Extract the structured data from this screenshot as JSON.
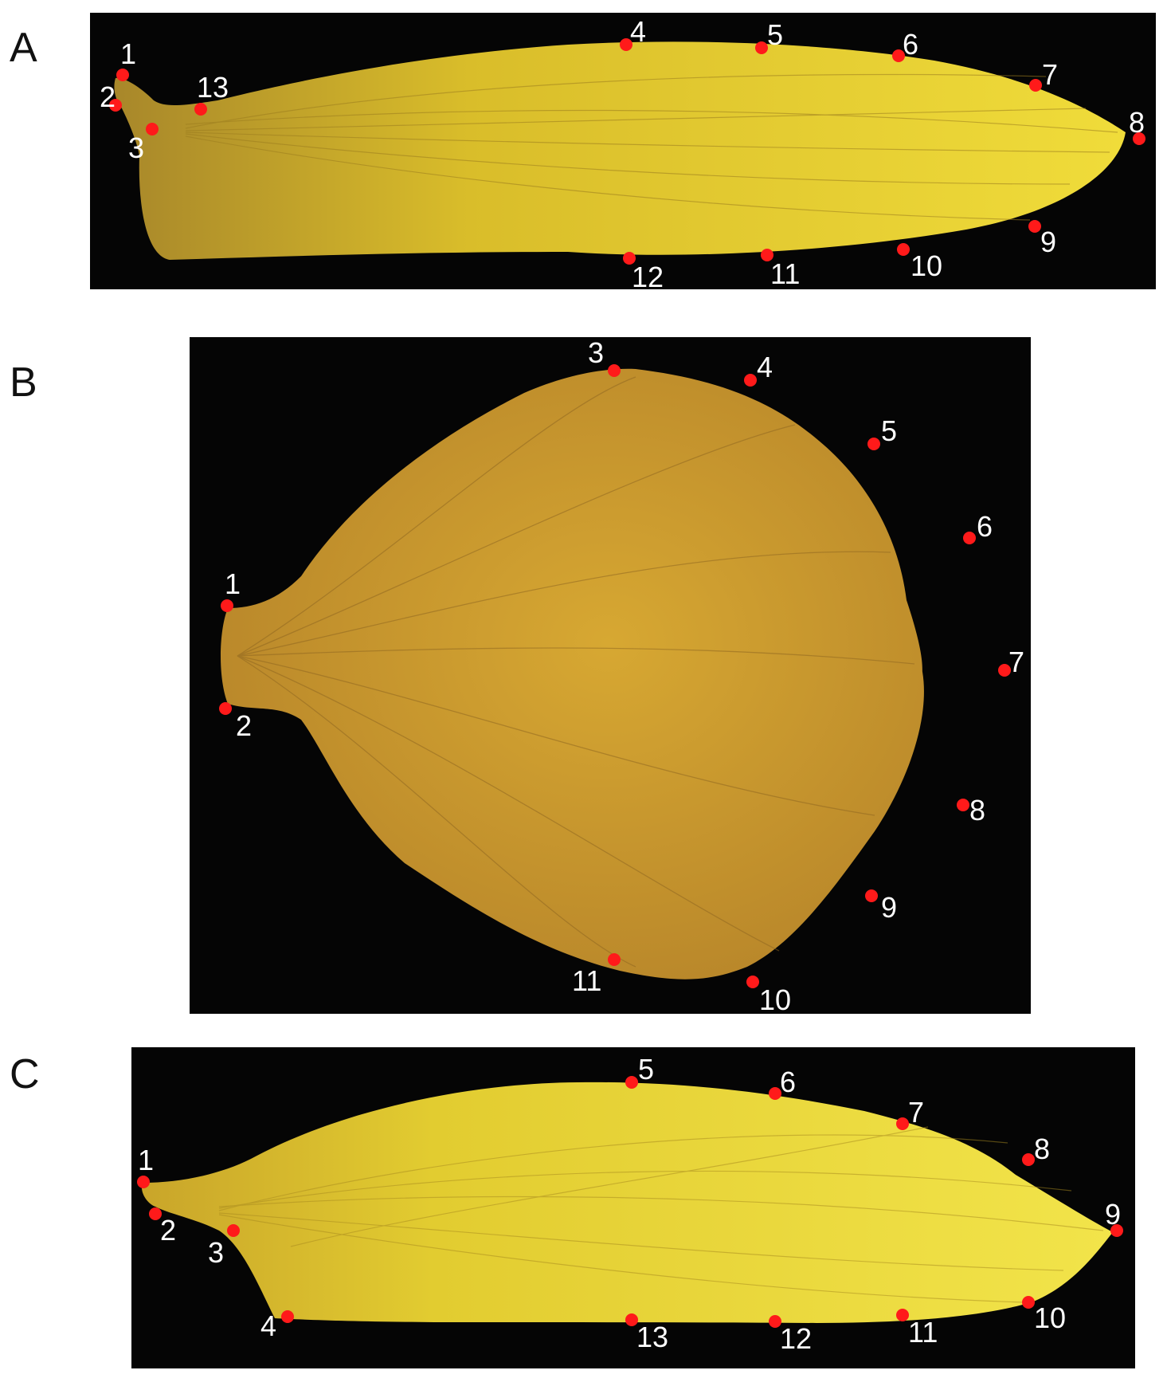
{
  "colors": {
    "background": "#050505",
    "landmark": "#ff1a1a",
    "label": "#ffffff",
    "petal_a": "#e3c72a",
    "petal_b": "#c9962a",
    "petal_c": "#e5d22e"
  },
  "panels": [
    {
      "letter": "A",
      "landmarks": [
        "1",
        "2",
        "3",
        "4",
        "5",
        "6",
        "7",
        "8",
        "9",
        "10",
        "11",
        "12",
        "13"
      ]
    },
    {
      "letter": "B",
      "landmarks": [
        "1",
        "2",
        "3",
        "4",
        "5",
        "6",
        "7",
        "8",
        "9",
        "10",
        "11"
      ]
    },
    {
      "letter": "C",
      "landmarks": [
        "1",
        "2",
        "3",
        "4",
        "5",
        "6",
        "7",
        "8",
        "9",
        "10",
        "11",
        "12",
        "13"
      ]
    }
  ]
}
